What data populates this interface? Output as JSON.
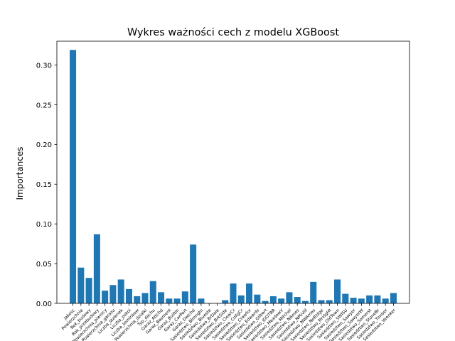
{
  "chart_data": {
    "type": "bar",
    "title": "Wykres ważności cech z modelu XGBoost",
    "xlabel": "",
    "ylabel": "Importances",
    "ylim": [
      0,
      0.33
    ],
    "yticks": [
      "0.00",
      "0.05",
      "0.10",
      "0.15",
      "0.20",
      "0.25",
      "0.30"
    ],
    "bar_color": "#1f77b4",
    "grid": false,
    "categories": [
      "Jakosc",
      "Powierzchnia",
      "Rok_budowy",
      "Rok_przebudowy",
      "Powierzchnia_piwnicy",
      "Powierzchnia_garazu",
      "Liczba_lazienek",
      "Liczba_pokoi",
      "Liczba_kominkow",
      "Powierzchnia_dzialki",
      "Typ_dachu",
      "Garaz_Attchd",
      "Garaz_Basment",
      "Garaz_BuiltIn",
      "Garaz_CarPort",
      "Garaz_Detchd",
      "Sasiedztwo_Blmngtn",
      "Sasiedztwo_Blueste",
      "Sasiedztwo_BrDale",
      "Sasiedztwo_BrkSide",
      "Sasiedztwo_ClearCr",
      "Sasiedztwo_CollgCr",
      "Sasiedztwo_Crawfor",
      "Sasiedztwo_Edwards",
      "Sasiedztwo_Gilbert",
      "Sasiedztwo_IDOTRR",
      "Sasiedztwo_MeadowV",
      "Sasiedztwo_Mitchel",
      "Sasiedztwo_NAmes",
      "Sasiedztwo_NPkVill",
      "Sasiedztwo_NWAmes",
      "Sasiedztwo_NoRidge",
      "Sasiedztwo_NridgHt",
      "Sasiedztwo_OldTown",
      "Sasiedztwo_SWISU",
      "Sasiedztwo_Sawyer",
      "Sasiedztwo_SawyerW",
      "Sasiedztwo_Somerst",
      "Sasiedztwo_StoneBr",
      "Sasiedztwo_Timber",
      "Sasiedztwo_Veenker"
    ],
    "values": [
      0.319,
      0.045,
      0.032,
      0.087,
      0.016,
      0.023,
      0.03,
      0.018,
      0.009,
      0.013,
      0.028,
      0.014,
      0.006,
      0.006,
      0.015,
      0.074,
      0.006,
      0.0,
      0.0,
      0.004,
      0.025,
      0.01,
      0.025,
      0.011,
      0.003,
      0.009,
      0.006,
      0.014,
      0.008,
      0.003,
      0.027,
      0.004,
      0.004,
      0.03,
      0.012,
      0.007,
      0.006,
      0.01,
      0.01,
      0.006,
      0.013
    ]
  }
}
